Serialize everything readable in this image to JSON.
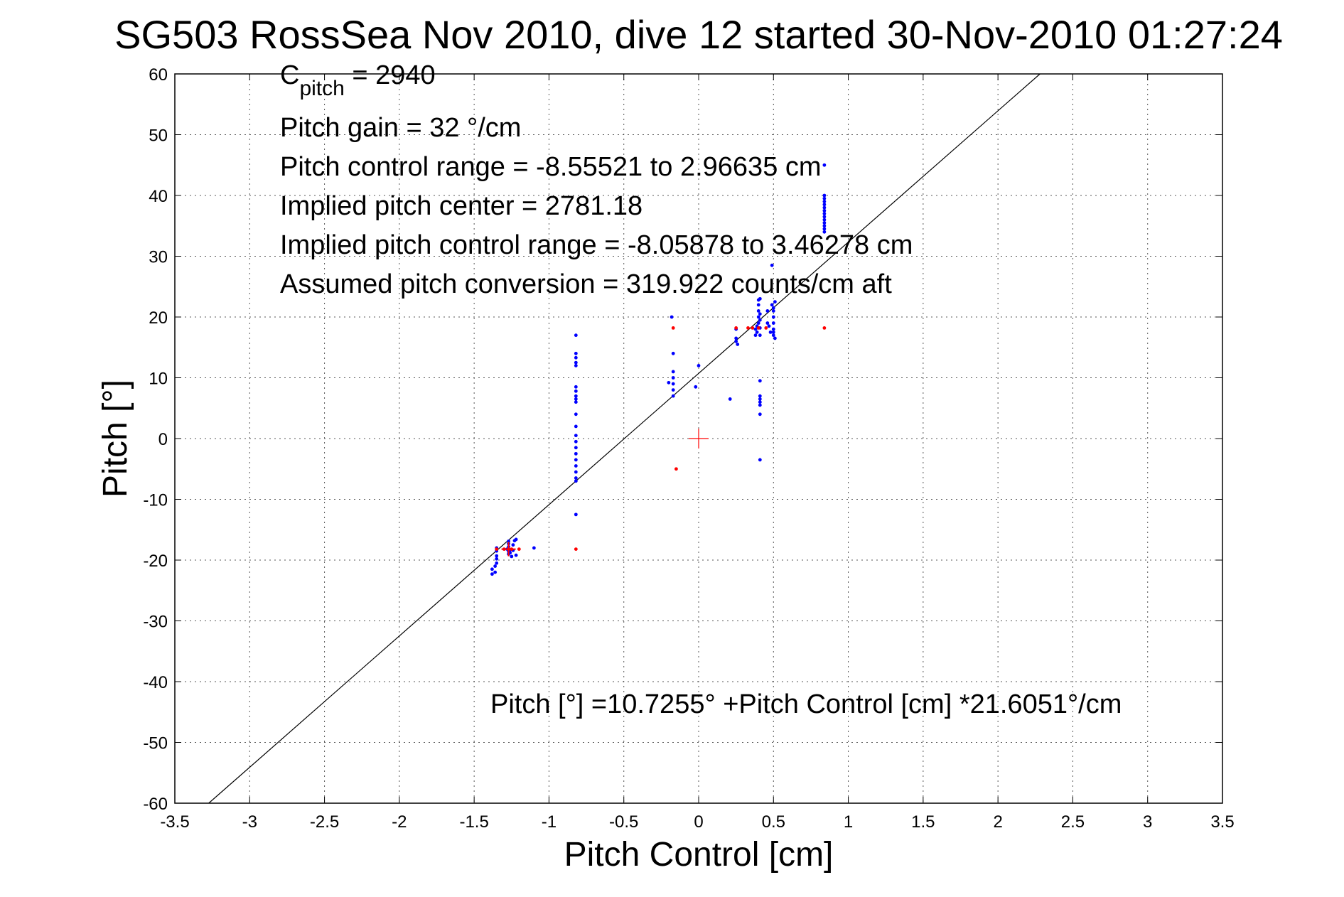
{
  "chart_data": {
    "type": "scatter",
    "title": "SG503 RossSea Nov 2010, dive 12 started 30-Nov-2010 01:27:24",
    "xlabel": "Pitch Control [cm]",
    "ylabel": "Pitch [°]",
    "xlim": [
      -3.5,
      3.5
    ],
    "ylim": [
      -60,
      60
    ],
    "xticks": [
      "-3.5",
      "-3",
      "-2.5",
      "-2",
      "-1.5",
      "-1",
      "-0.5",
      "0",
      "0.5",
      "1",
      "1.5",
      "2",
      "2.5",
      "3",
      "3.5"
    ],
    "yticks": [
      "-60",
      "-50",
      "-40",
      "-30",
      "-20",
      "-10",
      "0",
      "10",
      "20",
      "30",
      "40",
      "50",
      "60"
    ],
    "grid": true,
    "colors": {
      "observed": "#0000ff",
      "mean": "#ff0000",
      "fit": "#000000"
    },
    "annotations": {
      "c_pitch_base": "C",
      "c_pitch_sub": "pitch",
      "c_pitch_value": " = 2940",
      "pitch_gain": "Pitch gain = 32 °/cm",
      "pitch_control_range": "Pitch control range = -8.55521 to 2.96635 cm",
      "implied_center": "Implied pitch center = 2781.18",
      "implied_range": "Implied pitch control range = -8.05878 to 3.46278 cm",
      "assumed_conversion": "Assumed pitch conversion = 319.922 counts/cm aft",
      "fit_equation": "Pitch [°] =10.7255° +Pitch Control [cm] *21.6051°/cm"
    },
    "fit_line": {
      "intercept": 10.7255,
      "slope": 21.6051
    },
    "center_marker": {
      "x": 0,
      "y": 0
    },
    "series": [
      {
        "style": "observed",
        "points": [
          [
            -1.38,
            -21.5
          ],
          [
            -1.38,
            -22.3
          ],
          [
            -1.36,
            -22.0
          ],
          [
            -1.36,
            -21.0
          ],
          [
            -1.35,
            -20.5
          ],
          [
            -1.35,
            -19.8
          ],
          [
            -1.35,
            -19.3
          ],
          [
            -1.35,
            -18.5
          ],
          [
            -1.35,
            -18.0
          ],
          [
            -1.28,
            -18.2
          ],
          [
            -1.27,
            -17.8
          ],
          [
            -1.27,
            -17.3
          ],
          [
            -1.27,
            -16.9
          ],
          [
            -1.27,
            -18.6
          ],
          [
            -1.27,
            -19.0
          ],
          [
            -1.26,
            -18.8
          ],
          [
            -1.26,
            -18.3
          ],
          [
            -1.25,
            -19.4
          ],
          [
            -1.24,
            -18.4
          ],
          [
            -1.24,
            -17.5
          ],
          [
            -1.23,
            -16.8
          ],
          [
            -1.22,
            -19.2
          ],
          [
            -1.22,
            -16.6
          ],
          [
            -1.1,
            -18.0
          ],
          [
            -0.82,
            17.0
          ],
          [
            -0.82,
            14.0
          ],
          [
            -0.82,
            13.3
          ],
          [
            -0.82,
            12.5
          ],
          [
            -0.82,
            12.0
          ],
          [
            -0.82,
            8.5
          ],
          [
            -0.82,
            7.8
          ],
          [
            -0.82,
            7.0
          ],
          [
            -0.82,
            6.5
          ],
          [
            -0.82,
            6.0
          ],
          [
            -0.82,
            4.0
          ],
          [
            -0.82,
            2.0
          ],
          [
            -0.82,
            0.5
          ],
          [
            -0.82,
            -0.5
          ],
          [
            -0.82,
            -1.5
          ],
          [
            -0.82,
            -2.5
          ],
          [
            -0.82,
            -3.5
          ],
          [
            -0.82,
            -4.5
          ],
          [
            -0.82,
            -5.5
          ],
          [
            -0.82,
            -6.5
          ],
          [
            -0.82,
            -7.0
          ],
          [
            -0.82,
            -12.5
          ],
          [
            -0.18,
            20.0
          ],
          [
            -0.17,
            14.0
          ],
          [
            -0.17,
            11.0
          ],
          [
            -0.17,
            10.0
          ],
          [
            -0.17,
            9.0
          ],
          [
            -0.17,
            8.0
          ],
          [
            -0.17,
            7.0
          ],
          [
            -0.2,
            9.2
          ],
          [
            -0.02,
            8.5
          ],
          [
            0.0,
            12.0
          ],
          [
            0.21,
            6.5
          ],
          [
            0.25,
            18.0
          ],
          [
            0.25,
            16.5
          ],
          [
            0.25,
            16.0
          ],
          [
            0.26,
            15.5
          ],
          [
            0.38,
            17.0
          ],
          [
            0.38,
            18.0
          ],
          [
            0.39,
            17.5
          ],
          [
            0.39,
            18.5
          ],
          [
            0.4,
            19.0
          ],
          [
            0.4,
            20.0
          ],
          [
            0.4,
            21.0
          ],
          [
            0.4,
            22.0
          ],
          [
            0.4,
            22.8
          ],
          [
            0.41,
            17.0
          ],
          [
            0.41,
            18.2
          ],
          [
            0.41,
            19.5
          ],
          [
            0.41,
            20.5
          ],
          [
            0.41,
            23.0
          ],
          [
            0.41,
            9.5
          ],
          [
            0.41,
            7.0
          ],
          [
            0.41,
            6.5
          ],
          [
            0.41,
            6.0
          ],
          [
            0.41,
            5.5
          ],
          [
            0.41,
            4.0
          ],
          [
            0.41,
            -3.5
          ],
          [
            0.46,
            19.0
          ],
          [
            0.46,
            21.0
          ],
          [
            0.47,
            18.5
          ],
          [
            0.48,
            17.5
          ],
          [
            0.49,
            28.5
          ],
          [
            0.49,
            22.0
          ],
          [
            0.5,
            21.5
          ],
          [
            0.5,
            21.0
          ],
          [
            0.5,
            20.0
          ],
          [
            0.5,
            19.0
          ],
          [
            0.5,
            18.0
          ],
          [
            0.5,
            17.5
          ],
          [
            0.5,
            17.0
          ],
          [
            0.51,
            22.5
          ],
          [
            0.51,
            16.5
          ],
          [
            0.84,
            45.0
          ],
          [
            0.84,
            40.0
          ],
          [
            0.84,
            39.5
          ],
          [
            0.84,
            39.0
          ],
          [
            0.84,
            38.5
          ],
          [
            0.84,
            38.0
          ],
          [
            0.84,
            37.5
          ],
          [
            0.84,
            37.0
          ],
          [
            0.84,
            36.5
          ],
          [
            0.84,
            36.0
          ],
          [
            0.84,
            35.5
          ],
          [
            0.84,
            35.0
          ],
          [
            0.84,
            34.5
          ],
          [
            0.84,
            34.0
          ]
        ]
      },
      {
        "style": "mean",
        "points": [
          [
            -1.35,
            -18.2
          ],
          [
            -1.3,
            -18.2
          ],
          [
            -1.27,
            -18.2
          ],
          [
            -1.25,
            -18.2
          ],
          [
            -1.2,
            -18.2
          ],
          [
            -0.82,
            -18.2
          ],
          [
            -0.17,
            18.2
          ],
          [
            -0.15,
            -5.0
          ],
          [
            0.25,
            18.2
          ],
          [
            0.33,
            18.2
          ],
          [
            0.36,
            18.2
          ],
          [
            0.4,
            18.2
          ],
          [
            0.45,
            18.2
          ],
          [
            0.84,
            18.2
          ]
        ]
      }
    ]
  }
}
